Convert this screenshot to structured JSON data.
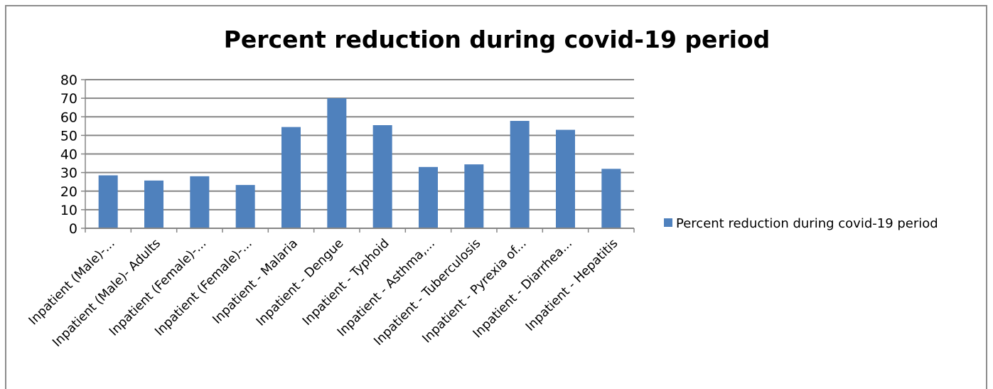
{
  "chart_data": {
    "type": "bar",
    "title": "Percent reduction during covid-19 period",
    "xlabel": "",
    "ylabel": "",
    "ylim": [
      0,
      80
    ],
    "yticks": [
      "0",
      "10",
      "20",
      "30",
      "40",
      "50",
      "60",
      "70",
      "80"
    ],
    "grid": true,
    "legend_position": "right",
    "categories": [
      "Inpatient (Male)-...",
      "Inpatient (Male)- Adults",
      "Inpatient (Female)-...",
      "Inpatient (Female)-...",
      "Inpatient - Malaria",
      "Inpatient - Dengue",
      "Inpatient - Typhoid",
      "Inpatient - Asthma,...",
      "Inpatient - Tuberculosis",
      "Inpatient - Pyrexia of...",
      "Inpatient - Diarrhea...",
      "Inpatient - Hepatitis"
    ],
    "series": [
      {
        "name": "Percent reduction during covid-19 period",
        "color": "#4f81bd",
        "values": [
          28.5,
          25.7,
          28.0,
          23.3,
          54.5,
          70.0,
          55.5,
          33.0,
          34.4,
          57.8,
          53.0,
          32.0
        ]
      }
    ]
  }
}
